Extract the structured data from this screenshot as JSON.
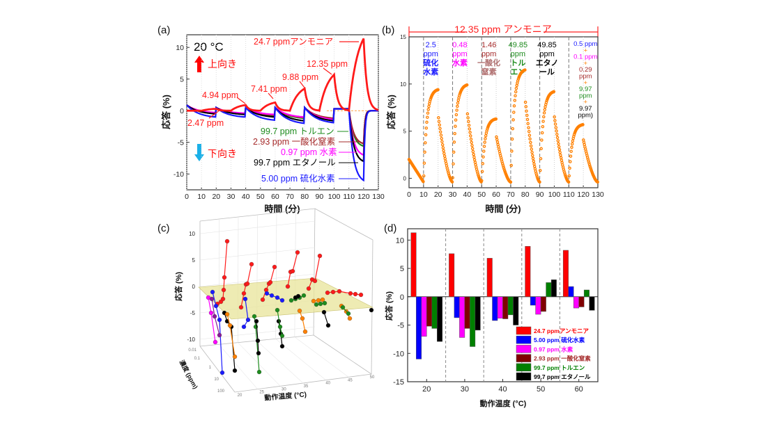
{
  "chart_data": [
    {
      "panel": "(a)",
      "type": "line",
      "xlabel": "時間 (分)",
      "ylabel": "応答 (%)",
      "xlim": [
        0,
        130
      ],
      "ylim": [
        -12.5,
        12
      ],
      "xticks": [
        "0",
        "10",
        "20",
        "30",
        "40",
        "50",
        "60",
        "70",
        "80",
        "90",
        "100",
        "110",
        "120",
        "130"
      ],
      "yticks": [
        "-10",
        "-5",
        "0",
        "5",
        "10"
      ],
      "temperature_label": "20 °C",
      "upward_label": "上向き",
      "downward_label": "下向き",
      "upward_color": "#ff0000",
      "downward_color": "#1ab0e8",
      "ammonia": {
        "color": "#ff1a1a",
        "exposure_start_min": [
          10,
          30,
          50,
          70,
          90,
          110
        ],
        "peak_values": [
          0.3,
          0.9,
          1.3,
          3.5,
          5.7,
          11.4
        ],
        "labels": [
          "2.47 ppm",
          "4.94 ppm",
          "7.41 ppm",
          "9.88 ppm",
          "12.35 ppm",
          "24.7 ppmアンモニア"
        ]
      },
      "series": [
        {
          "name": "99.7 ppm トルエン",
          "color": "#1e8c1e",
          "cycle_end_values": [
            -0.4,
            -0.5,
            -0.8,
            -1.2,
            -1.3
          ],
          "final_value": -5.6
        },
        {
          "name": "2.93 ppm 一酸化窒素",
          "color": "#a52a2a",
          "cycle_end_values": [
            -0.4,
            -0.5,
            -0.7,
            -1.1,
            -1.2
          ],
          "final_value": -5.2
        },
        {
          "name": "0.97 ppm 水素",
          "color": "#ff00ff",
          "cycle_end_values": [
            -0.3,
            -0.4,
            -0.6,
            -1.0,
            -1.4
          ],
          "final_value": -7.0
        },
        {
          "name": "99.7 ppm エタノール",
          "color": "#000000",
          "cycle_end_values": [
            -0.5,
            -0.6,
            -1.0,
            -1.6,
            -1.6
          ],
          "final_value": -8.0
        },
        {
          "name": "5.00 ppm 硫化水素",
          "color": "#1a1aff",
          "cycle_end_values": [
            -1.0,
            -1.0,
            -1.5,
            -2.0,
            -1.9
          ],
          "final_value": -11.0
        }
      ]
    },
    {
      "panel": "(b)",
      "type": "scatter",
      "xlabel": "時間 (分)",
      "ylabel": "応答 (%)",
      "xlim": [
        0,
        130
      ],
      "ylim": [
        -1,
        15
      ],
      "xticks": [
        "0",
        "10",
        "20",
        "30",
        "40",
        "50",
        "60",
        "70",
        "80",
        "90",
        "100",
        "110",
        "120",
        "130"
      ],
      "yticks": [
        "0",
        "5",
        "10",
        "15"
      ],
      "header": "12.35 ppm アンモニア",
      "color": "#ff8000",
      "exposure_start_min": [
        10,
        30,
        50,
        70,
        90,
        110
      ],
      "peak_values": [
        9.4,
        9.9,
        6.3,
        11.5,
        9.2,
        5.7
      ],
      "trough_value": -0.4,
      "mixtures": [
        {
          "lines": [
            "2.5",
            "ppm",
            "硫化",
            "水素"
          ],
          "colors": [
            "#1a1aff",
            "#1a1aff",
            "#1a1aff",
            "#1a1aff"
          ]
        },
        {
          "lines": [
            "0.48",
            "ppm",
            "水素"
          ],
          "colors": [
            "#ff00ff",
            "#ff00ff",
            "#ff00ff"
          ]
        },
        {
          "lines": [
            "1.46",
            "ppm",
            "一酸化",
            "窒素"
          ],
          "colors": [
            "#a52a2a",
            "#a52a2a",
            "#b07070",
            "#b07070"
          ]
        },
        {
          "lines": [
            "49.85",
            "ppm",
            "トル",
            "エン"
          ],
          "colors": [
            "#1e8c1e",
            "#1e8c1e",
            "#1e8c1e",
            "#1e8c1e"
          ]
        },
        {
          "lines": [
            "49.85",
            "ppm",
            "エタノ",
            "ール"
          ],
          "colors": [
            "#000000",
            "#000000",
            "#000000",
            "#000000"
          ]
        },
        {
          "lines": [
            "0.5 ppm",
            "+",
            "0.1 ppm",
            "+",
            "0.29",
            "ppm",
            "+",
            "9.97",
            "ppm",
            "+",
            "9.97",
            "ppm)"
          ],
          "colors": [
            "#1a1aff",
            "#ff8000",
            "#ff00ff",
            "#ff8000",
            "#a52a2a",
            "#a52a2a",
            "#ff8000",
            "#1e8c1e",
            "#1e8c1e",
            "#ff8000",
            "#000000",
            "#000000"
          ]
        }
      ]
    },
    {
      "panel": "(c)",
      "type": "scatter",
      "xlabel": "動作温度 (°C)",
      "ylabel": "濃度 (ppm)",
      "zlabel": "応答 (%)",
      "zticks": [
        "10",
        "5",
        "0",
        "-5",
        "-10"
      ],
      "concentration_ticks": [
        "0.01",
        "0.1",
        "1",
        "10",
        "100"
      ],
      "temperature_ticks": [
        "20",
        "25",
        "30",
        "35",
        "40",
        "45",
        "50"
      ],
      "plane_color": "#e8e49a"
    },
    {
      "panel": "(d)",
      "type": "bar",
      "xlabel": "動作温度 (°C)",
      "ylabel": "応答 (%)",
      "categories": [
        "20",
        "30",
        "40",
        "50",
        "60"
      ],
      "ylim": [
        -15,
        12
      ],
      "yticks": [
        "-15",
        "-10",
        "-5",
        "0",
        "5",
        "10"
      ],
      "legend_position": "bottom-right",
      "series": [
        {
          "name": "24.7 ppmアンモニア",
          "color": "#ff0000",
          "values": [
            11.3,
            7.6,
            6.8,
            8.9,
            8.2
          ]
        },
        {
          "name": "5.00 ppm 硫化水素",
          "color": "#0000ff",
          "values": [
            -11.0,
            -3.7,
            -4.2,
            -1.5,
            1.8
          ]
        },
        {
          "name": "0.97 ppm 水素",
          "color": "#ff00ff",
          "values": [
            -7.0,
            -7.2,
            -3.8,
            -3.1,
            -2.0
          ]
        },
        {
          "name": "2.93 ppm 一酸化窒素",
          "color": "#800000",
          "values": [
            -5.2,
            -5.6,
            -3.9,
            -2.6,
            -1.8
          ]
        },
        {
          "name": "99.7 ppm トルエン",
          "color": "#008000",
          "values": [
            -5.6,
            -8.8,
            -3.2,
            2.5,
            1.2
          ]
        },
        {
          "name": "99.7 ppm エタノール",
          "color": "#000000",
          "values": [
            -7.9,
            -5.9,
            -5.0,
            3.0,
            -2.4
          ]
        }
      ]
    }
  ]
}
